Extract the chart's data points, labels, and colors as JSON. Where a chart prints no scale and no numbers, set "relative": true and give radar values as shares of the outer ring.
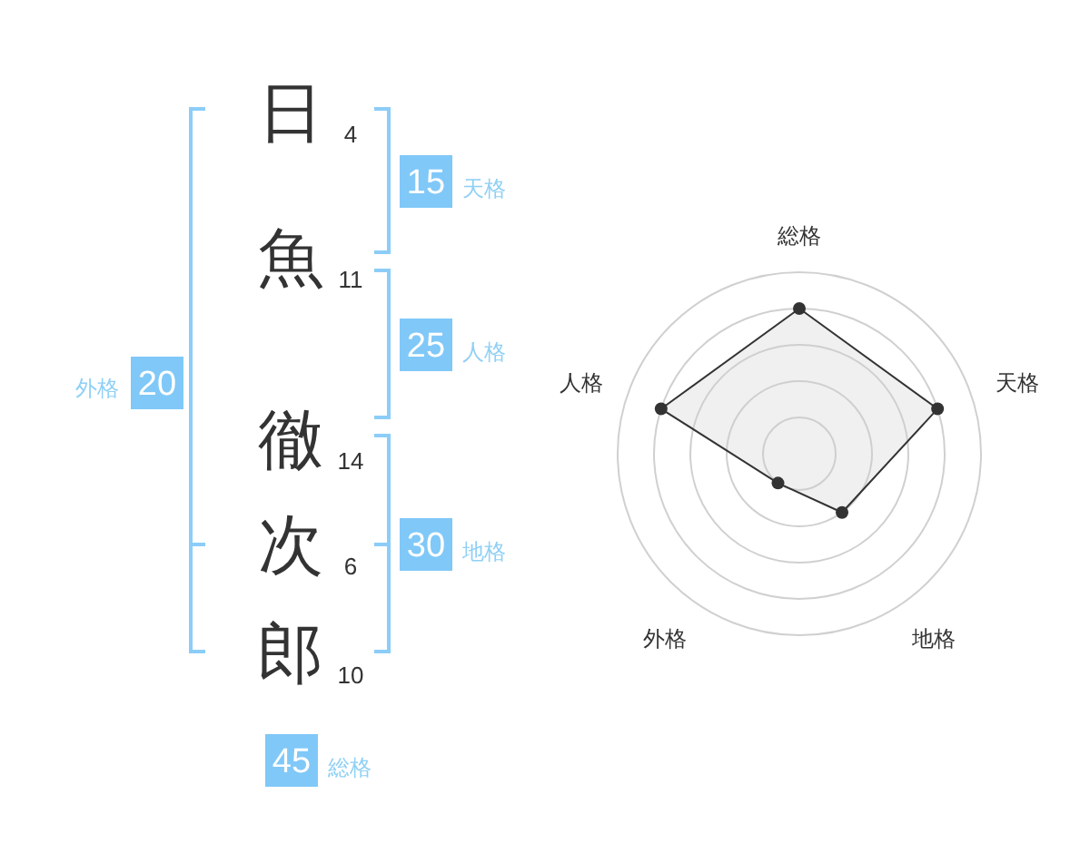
{
  "chart_data": [
    {
      "type": "other",
      "categories": [
        "日",
        "魚",
        "徹",
        "次",
        "郎"
      ],
      "values": [
        4,
        11,
        14,
        6,
        10
      ],
      "data_labels": true
    },
    {
      "type": "other",
      "categories": [
        "天格",
        "人格",
        "地格",
        "外格",
        "総格"
      ],
      "values": [
        15,
        25,
        30,
        20,
        45
      ],
      "colors": [
        "#80c8f8",
        "#80c8f8",
        "#80c8f8",
        "#80c8f8",
        "#80c8f8"
      ],
      "data_labels": true
    },
    {
      "type": "radar",
      "categories": [
        "総格",
        "天格",
        "地格",
        "外格",
        "人格"
      ],
      "series": [
        {
          "color": "#333333",
          "values": [
            0.8,
            0.8,
            0.4,
            0.2,
            0.8
          ]
        }
      ],
      "relative": true,
      "grid": true,
      "marker": "circle"
    }
  ]
}
